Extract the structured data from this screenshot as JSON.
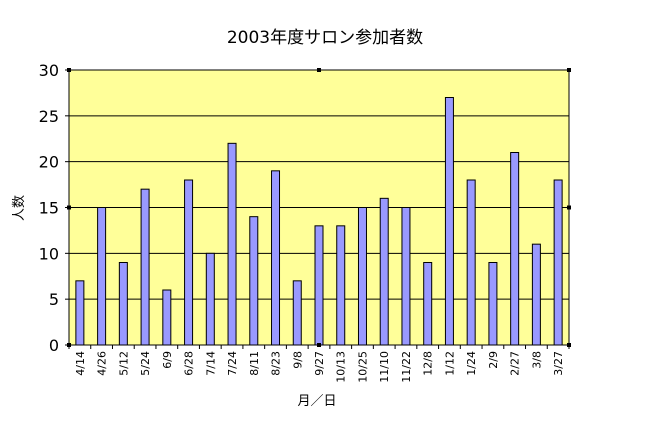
{
  "chart_data": {
    "type": "bar",
    "title": "2003年度サロン参加者数",
    "xlabel": "月／日",
    "ylabel": "人数",
    "ylim": [
      0,
      30
    ],
    "yticks": [
      0,
      5,
      10,
      15,
      20,
      25,
      30
    ],
    "grid": true,
    "legend": "none",
    "categories": [
      "4/14",
      "4/26",
      "5/12",
      "5/24",
      "6/9",
      "6/28",
      "7/14",
      "7/24",
      "8/11",
      "8/23",
      "9/8",
      "9/27",
      "10/13",
      "10/25",
      "11/10",
      "11/22",
      "12/8",
      "1/12",
      "1/24",
      "2/9",
      "2/27",
      "3/8",
      "3/27"
    ],
    "values": [
      7,
      15,
      9,
      17,
      6,
      18,
      10,
      22,
      14,
      19,
      7,
      13,
      13,
      15,
      16,
      15,
      9,
      27,
      18,
      9,
      21,
      11,
      18
    ],
    "colors": {
      "plot_background": "#ffff99",
      "bar_fill": "#9999ff",
      "bar_stroke": "#000000",
      "gridline": "#000000"
    }
  }
}
